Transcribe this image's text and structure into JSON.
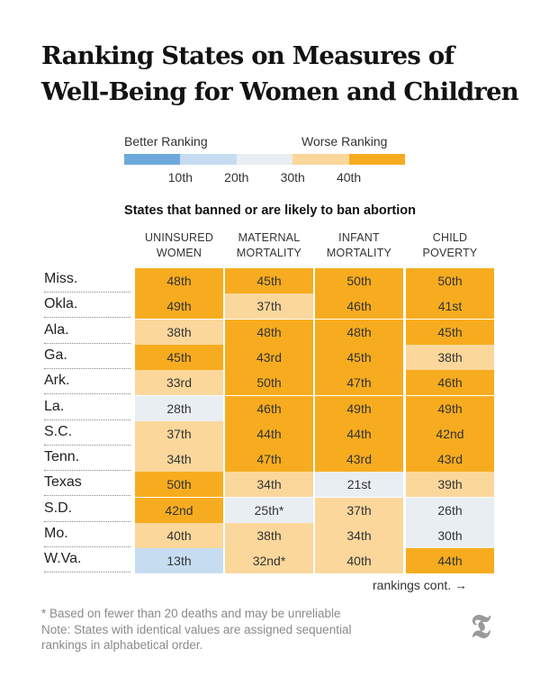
{
  "title": "Ranking States on Measures of Well-Being for Women and Children",
  "legend": {
    "better_label": "Better Ranking",
    "worse_label": "Worse Ranking",
    "ticks": [
      "10th",
      "20th",
      "30th",
      "40th"
    ],
    "colors": [
      "#6ea9dc",
      "#c6ddf1",
      "#e9eef3",
      "#fbd79b",
      "#f7ac1f"
    ]
  },
  "chart_data": {
    "type": "table",
    "subtitle": "States that banned or are likely to ban abortion",
    "columns": [
      "UNINSURED WOMEN",
      "MATERNAL MORTALITY",
      "INFANT MORTALITY",
      "CHILD POVERTY"
    ],
    "rows": [
      {
        "state": "Miss.",
        "values": [
          "48th",
          "45th",
          "50th",
          "50th"
        ],
        "ranks": [
          48,
          45,
          50,
          50
        ]
      },
      {
        "state": "Okla.",
        "values": [
          "49th",
          "37th",
          "46th",
          "41st"
        ],
        "ranks": [
          49,
          37,
          46,
          41
        ]
      },
      {
        "state": "Ala.",
        "values": [
          "38th",
          "48th",
          "48th",
          "45th"
        ],
        "ranks": [
          38,
          48,
          48,
          45
        ]
      },
      {
        "state": "Ga.",
        "values": [
          "45th",
          "43rd",
          "45th",
          "38th"
        ],
        "ranks": [
          45,
          43,
          45,
          38
        ]
      },
      {
        "state": "Ark.",
        "values": [
          "33rd",
          "50th",
          "47th",
          "46th"
        ],
        "ranks": [
          33,
          50,
          47,
          46
        ]
      },
      {
        "state": "La.",
        "values": [
          "28th",
          "46th",
          "49th",
          "49th"
        ],
        "ranks": [
          28,
          46,
          49,
          49
        ]
      },
      {
        "state": "S.C.",
        "values": [
          "37th",
          "44th",
          "44th",
          "42nd"
        ],
        "ranks": [
          37,
          44,
          44,
          42
        ]
      },
      {
        "state": "Tenn.",
        "values": [
          "34th",
          "47th",
          "43rd",
          "43rd"
        ],
        "ranks": [
          34,
          47,
          43,
          43
        ]
      },
      {
        "state": "Texas",
        "values": [
          "50th",
          "34th",
          "21st",
          "39th"
        ],
        "ranks": [
          50,
          34,
          21,
          39
        ]
      },
      {
        "state": "S.D.",
        "values": [
          "42nd",
          "25th*",
          "37th",
          "26th"
        ],
        "ranks": [
          42,
          25,
          37,
          26
        ]
      },
      {
        "state": "Mo.",
        "values": [
          "40th",
          "38th",
          "34th",
          "30th"
        ],
        "ranks": [
          40,
          38,
          34,
          30
        ]
      },
      {
        "state": "W.Va.",
        "values": [
          "13th",
          "32nd*",
          "40th",
          "44th"
        ],
        "ranks": [
          13,
          32,
          40,
          44
        ]
      }
    ]
  },
  "continued_label": "rankings cont. →",
  "footnote": "* Based on fewer than 20 deaths and may be unreliable",
  "note_line1": "Note: States with identical values are assigned sequential",
  "note_line2": "rankings in alphabetical order.",
  "logo_icon": "nyt-logo-icon"
}
